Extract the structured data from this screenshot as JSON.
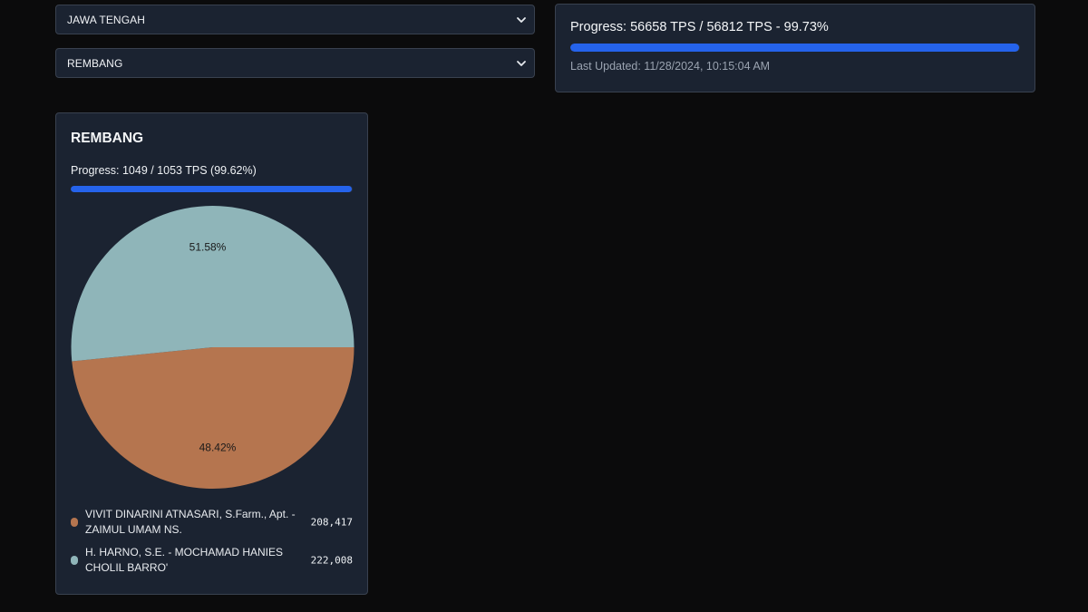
{
  "filters": {
    "province": "JAWA TENGAH",
    "regency": "REMBANG",
    "chevron_icon": "chevron-down-icon"
  },
  "status": {
    "progress_text": "Progress: 56658 TPS / 56812 TPS - 99.73%",
    "progress_fraction": 0.9973,
    "last_updated": "Last Updated: 11/28/2024, 10:15:04 AM",
    "bar_color": "#2563eb"
  },
  "region": {
    "title": "REMBANG",
    "progress_text": "Progress: 1049 / 1053 TPS (99.62%)",
    "progress_fraction": 0.9962
  },
  "chart_data": {
    "type": "pie",
    "labels": [
      "VIVIT DINARINI ATNASARI, S.Farm., Apt. - ZAIMUL UMAM NS.",
      "H. HARNO, S.E. - MOCHAMAD HANIES CHOLIL BARRO'"
    ],
    "values": [
      208417,
      222008
    ],
    "percent_labels": [
      "48.42%",
      "51.58%"
    ],
    "colors": [
      "#b5754f",
      "#8fb5b9"
    ],
    "legend_position": "bottom"
  },
  "legend": [
    {
      "name": "VIVIT DINARINI ATNASARI, S.Farm., Apt. - ZAIMUL UMAM NS.",
      "value": "208,417",
      "color": "#b5754f"
    },
    {
      "name": "H. HARNO, S.E. - MOCHAMAD HANIES CHOLIL BARRO'",
      "value": "222,008",
      "color": "#8fb5b9"
    }
  ]
}
